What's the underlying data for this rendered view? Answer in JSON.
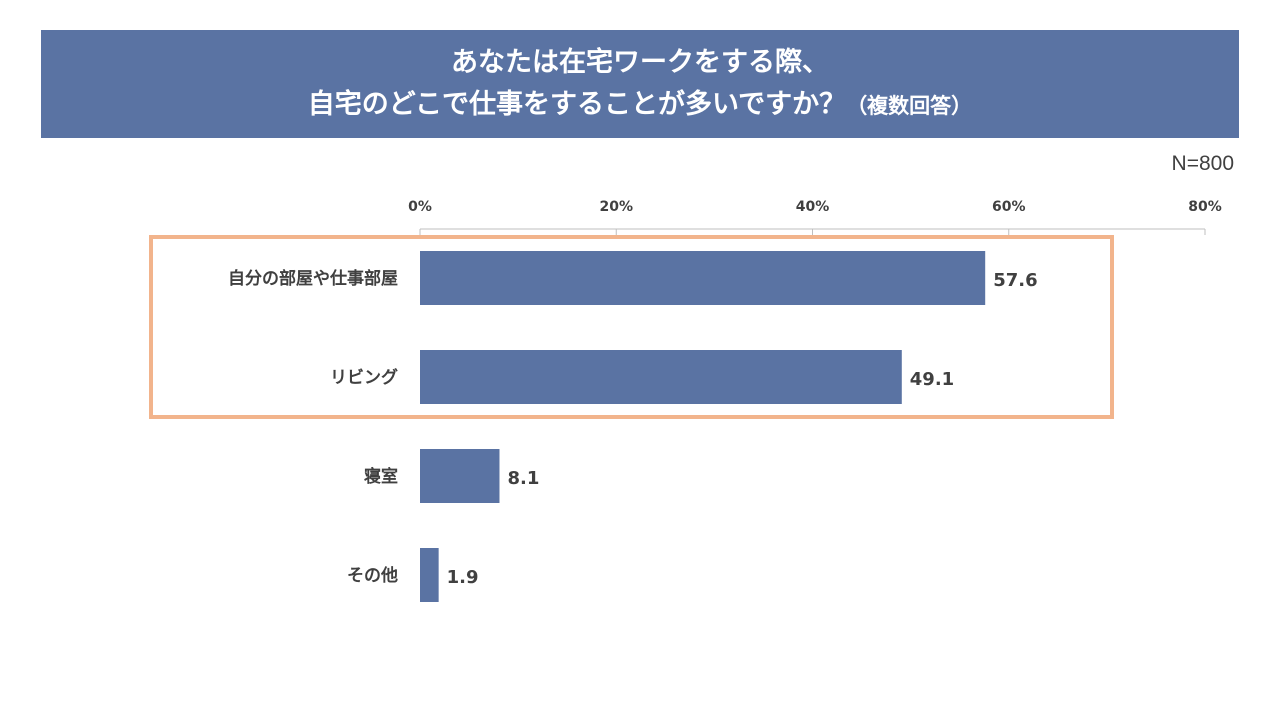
{
  "title": {
    "line1": "あなたは在宅ワークをする際、",
    "line2": "自宅のどこで仕事をすることが多いですか？",
    "note": "（複数回答）"
  },
  "sample_size": "N=800",
  "colors": {
    "banner": "#5a73a3",
    "bar": "#5a73a3",
    "highlight": "#f2b48c",
    "text": "#404040"
  },
  "chart_data": {
    "type": "bar",
    "orientation": "horizontal",
    "title": "あなたは在宅ワークをする際、自宅のどこで仕事をすることが多いですか？（複数回答）",
    "categories": [
      "自分の部屋や仕事部屋",
      "リビング",
      "寝室",
      "その他"
    ],
    "values": [
      57.6,
      49.1,
      8.1,
      1.9
    ],
    "value_labels": [
      "57.6",
      "49.1",
      "8.1",
      "1.9"
    ],
    "xlim": [
      0,
      80
    ],
    "xticks": [
      0,
      20,
      40,
      60,
      80
    ],
    "xtick_labels": [
      "0%",
      "20%",
      "40%",
      "60%",
      "80%"
    ],
    "axis_position": "top",
    "highlighted_categories": [
      "自分の部屋や仕事部屋",
      "リビング"
    ],
    "grid": false,
    "legend": "none"
  }
}
